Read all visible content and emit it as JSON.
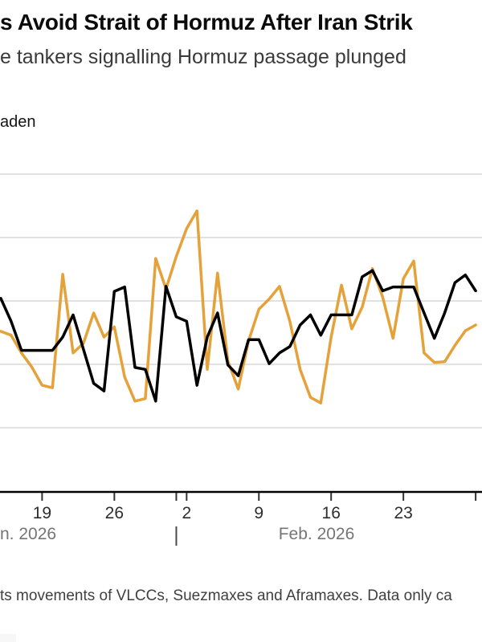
{
  "header": {
    "title": "s Avoid Strait of Hormuz After Iran Strik",
    "subtitle": "e tankers signalling Hormuz passage plunged"
  },
  "legend": {
    "visible_label": "aden"
  },
  "chart_data": {
    "type": "line",
    "title_visible": "s Avoid Strait of Hormuz After Iran Strik",
    "subtitle_visible": "e tankers signalling Hormuz passage plunged",
    "xlabel": "",
    "ylabel": "",
    "ylim": [
      0,
      54
    ],
    "grid": true,
    "y_gridline_values": [
      10,
      20,
      30,
      40,
      50
    ],
    "y_axis_labels": "cropped out of frame",
    "legend_position": "top-left",
    "x": [
      "Jan 15",
      "Jan 16",
      "Jan 17",
      "Jan 18",
      "Jan 19",
      "Jan 20",
      "Jan 21",
      "Jan 22",
      "Jan 23",
      "Jan 24",
      "Jan 25",
      "Jan 26",
      "Jan 27",
      "Jan 28",
      "Jan 29",
      "Jan 30",
      "Jan 31",
      "Feb 1",
      "Feb 2",
      "Feb 3",
      "Feb 4",
      "Feb 5",
      "Feb 6",
      "Feb 7",
      "Feb 8",
      "Feb 9",
      "Feb 10",
      "Feb 11",
      "Feb 12",
      "Feb 13",
      "Feb 14",
      "Feb 15",
      "Feb 16",
      "Feb 17",
      "Feb 18",
      "Feb 19",
      "Feb 20",
      "Feb 21",
      "Feb 22",
      "Feb 23",
      "Feb 24",
      "Feb 25",
      "Feb 26",
      "Feb 27",
      "Feb 28",
      "Mar 1",
      "Mar 2"
    ],
    "series": [
      {
        "name": "series-orange",
        "color": "#E5A23B",
        "values": [
          25.2,
          24.6,
          21.8,
          19.6,
          16.7,
          16.3,
          34.2,
          21.8,
          23.3,
          28.1,
          24.3,
          25.9,
          18.0,
          14.2,
          14.6,
          36.7,
          31.9,
          37.0,
          41.4,
          44.2,
          19.2,
          34.4,
          20.5,
          16.1,
          23.7,
          28.7,
          30.3,
          32.3,
          26.8,
          19.2,
          14.8,
          13.9,
          24.3,
          32.5,
          25.6,
          29.0,
          35.1,
          30.6,
          24.1,
          33.5,
          36.3,
          21.8,
          20.3,
          20.4,
          23.0,
          25.3,
          26.2
        ]
      },
      {
        "name": "series-black",
        "color": "#000000",
        "values": [
          30.4,
          26.8,
          22.2,
          22.2,
          22.2,
          22.2,
          24.3,
          27.8,
          22.4,
          17.0,
          15.8,
          31.5,
          32.2,
          19.5,
          19.2,
          14.2,
          32.3,
          27.5,
          26.8,
          16.7,
          24.3,
          28.1,
          19.9,
          18.2,
          23.9,
          23.9,
          20.1,
          21.8,
          22.8,
          26.2,
          27.8,
          24.6,
          27.8,
          27.8,
          27.8,
          33.8,
          34.8,
          31.6,
          32.2,
          32.2,
          32.2,
          28.1,
          24.1,
          28.1,
          32.9,
          34.1,
          31.6
        ]
      }
    ],
    "x_ticks": [
      {
        "label": "19",
        "index": 4
      },
      {
        "label": "26",
        "index": 11
      },
      {
        "label": "2",
        "index": 18
      },
      {
        "label": "9",
        "index": 25
      },
      {
        "label": "16",
        "index": 32
      },
      {
        "label": "23",
        "index": 39
      },
      {
        "label": "",
        "index": 46
      }
    ],
    "month_divider_index": 17,
    "x_month_labels": [
      {
        "label": "n. 2026"
      },
      {
        "label": "Feb. 2026"
      }
    ]
  },
  "footer": {
    "note": "ts movements of VLCCs, Suezmaxes and Aframaxes. Data only ca"
  },
  "colors": {
    "orange_line": "#E5A23B",
    "black_line": "#000000",
    "gridline": "#d8d8d8",
    "axis": "#000000",
    "tick_label": "#2d2d2d",
    "month_label": "#757575"
  }
}
